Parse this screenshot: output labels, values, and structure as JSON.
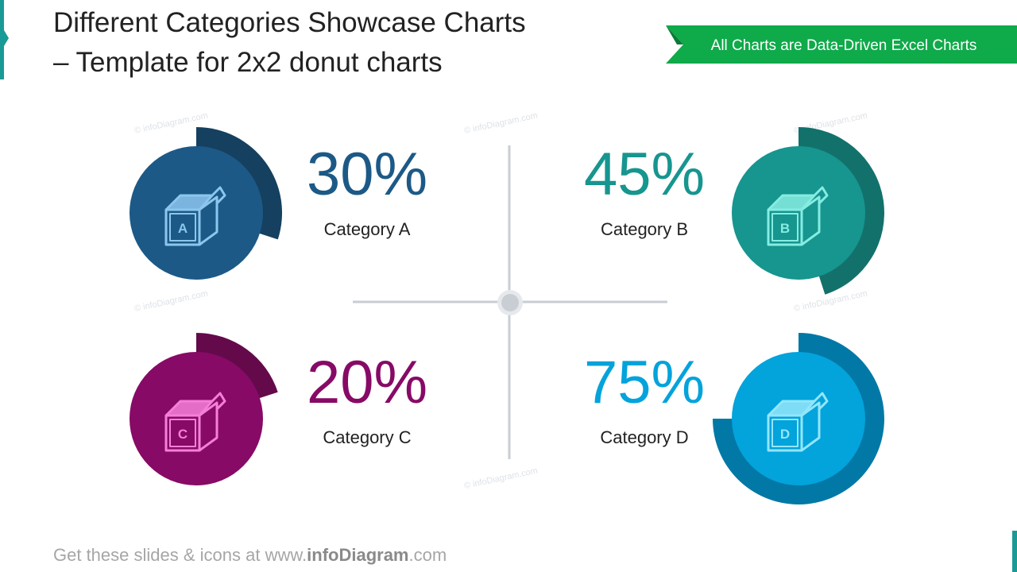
{
  "title": [
    "Different Categories Showcase Charts",
    "– Template for 2x2 donut charts"
  ],
  "banner": "All Charts are Data-Driven Excel Charts",
  "watermark": "© infoDiagram.com",
  "footer": {
    "prefix": "Get these slides & icons at www.",
    "brand": "infoDiagram",
    "suffix": ".com"
  },
  "chart_data": [
    {
      "type": "donut",
      "categories": [
        "Category A"
      ],
      "values": [
        30
      ],
      "value_labels": [
        "30%"
      ],
      "icon_label": "A",
      "color": "#1c5986",
      "ring_color": "#15405f",
      "icon_color": "#8cc6ee"
    },
    {
      "type": "donut",
      "categories": [
        "Category B"
      ],
      "values": [
        45
      ],
      "value_labels": [
        "45%"
      ],
      "icon_label": "B",
      "color": "#17958f",
      "ring_color": "#13716c",
      "icon_color": "#86ece2"
    },
    {
      "type": "donut",
      "categories": [
        "Category C"
      ],
      "values": [
        20
      ],
      "value_labels": [
        "20%"
      ],
      "icon_label": "C",
      "color": "#870a66",
      "ring_color": "#640a4b",
      "icon_color": "#f47fd9"
    },
    {
      "type": "donut",
      "categories": [
        "Category D"
      ],
      "values": [
        75
      ],
      "value_labels": [
        "75%"
      ],
      "icon_label": "D",
      "color": "#03a3dc",
      "ring_color": "#0278a6",
      "icon_color": "#93e6fa"
    }
  ]
}
